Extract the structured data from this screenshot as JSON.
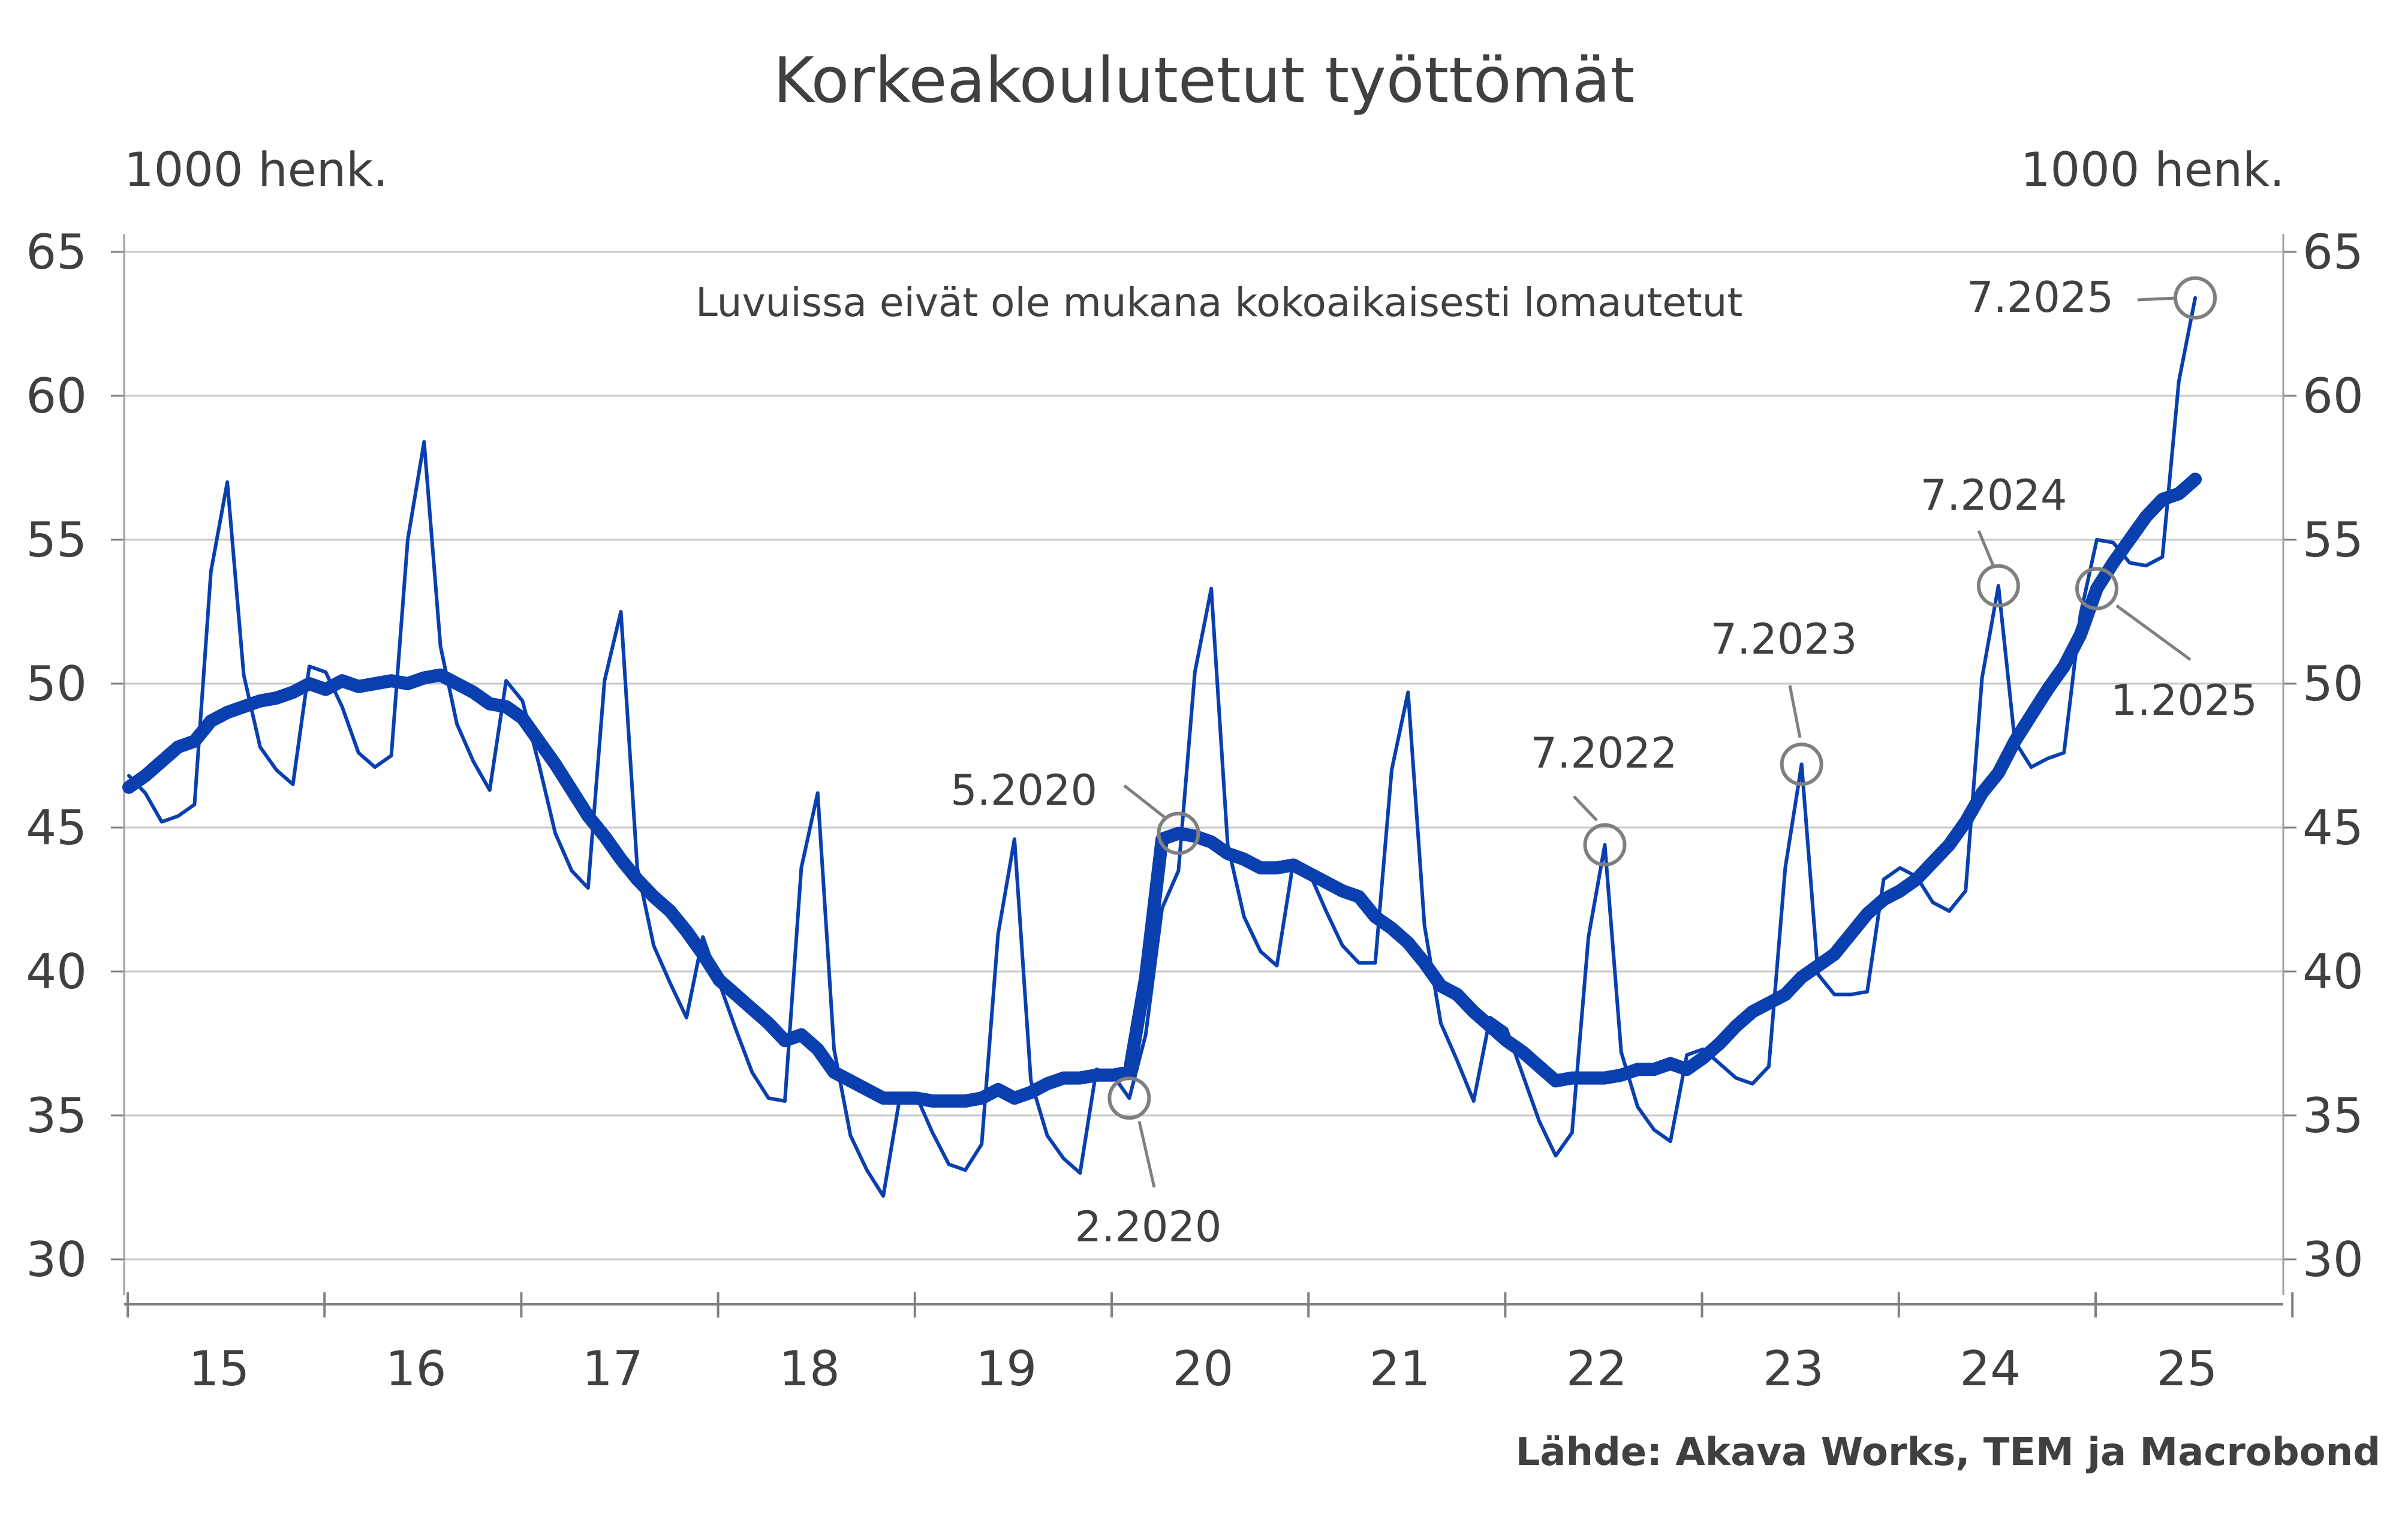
{
  "title": "Korkeakoulutetut työttömät",
  "left_unit": "1000 henk.",
  "right_unit": "1000 henk.",
  "note": "Luvuissa eivät ole mukana kokoaikaisesti lomautetut",
  "source": "Lähde: Akava Works, TEM ja Macrobond",
  "colors": {
    "series": "#0a3fb0",
    "grid": "#c8c8c8",
    "annotation": "#7f7f7f",
    "text": "#404040"
  },
  "chart_data": {
    "type": "line",
    "x_ticks": [
      "15",
      "16",
      "17",
      "18",
      "19",
      "20",
      "21",
      "22",
      "23",
      "24",
      "25"
    ],
    "y_ticks": [
      30,
      35,
      40,
      45,
      50,
      55,
      60,
      65
    ],
    "ylim": [
      30,
      65
    ],
    "xlim": [
      "2015-01",
      "2025-12"
    ],
    "grid": true,
    "series": [
      {
        "style": "thin",
        "x_start": "2015-01",
        "values": [
          46.8,
          46.2,
          45.2,
          45.4,
          45.8,
          53.9,
          57.0,
          50.3,
          47.8,
          47.0,
          46.5,
          50.6,
          50.4,
          49.2,
          47.6,
          47.1,
          47.5,
          55.0,
          58.4,
          51.3,
          48.6,
          47.3,
          46.3,
          50.1,
          49.4,
          47.2,
          44.8,
          43.5,
          42.9,
          50.1,
          52.5,
          43.6,
          40.9,
          39.6,
          38.4,
          41.2,
          39.6,
          38.0,
          36.5,
          35.6,
          35.5,
          43.6,
          46.2,
          37.3,
          34.3,
          33.1,
          32.2,
          35.6,
          35.7,
          34.4,
          33.3,
          33.1,
          34.0,
          41.3,
          44.6,
          36.2,
          34.3,
          33.5,
          33.0,
          36.6,
          36.4,
          35.6,
          37.8,
          42.2,
          43.5,
          50.4,
          53.3,
          44.4,
          41.9,
          40.7,
          40.2,
          43.8,
          43.4,
          42.1,
          40.9,
          40.3,
          40.3,
          47.0,
          49.7,
          41.6,
          38.2,
          36.9,
          35.5,
          38.4,
          38.0,
          36.4,
          34.8,
          33.6,
          34.4,
          41.2,
          44.4,
          37.2,
          35.3,
          34.5,
          34.1,
          37.1,
          37.3,
          36.8,
          36.3,
          36.1,
          36.7,
          43.6,
          47.2,
          39.9,
          39.2,
          39.2,
          39.3,
          43.2,
          43.6,
          43.3,
          42.4,
          42.1,
          42.8,
          50.2,
          53.4,
          48.0,
          47.1,
          47.4,
          47.6,
          52.4,
          55.0,
          54.9,
          54.2,
          54.1,
          54.4,
          60.5,
          63.4
        ]
      },
      {
        "style": "thick",
        "x_start": "2015-01",
        "values": [
          46.4,
          46.8,
          47.3,
          47.8,
          48.0,
          48.7,
          49.0,
          49.2,
          49.4,
          49.5,
          49.7,
          50.0,
          49.8,
          50.1,
          49.9,
          50.0,
          50.1,
          50.0,
          50.2,
          50.3,
          50.0,
          49.7,
          49.3,
          49.2,
          48.8,
          48.0,
          47.2,
          46.3,
          45.4,
          44.7,
          43.9,
          43.2,
          42.6,
          42.1,
          41.4,
          40.6,
          39.7,
          39.2,
          38.7,
          38.2,
          37.6,
          37.8,
          37.3,
          36.5,
          36.2,
          35.9,
          35.6,
          35.6,
          35.6,
          35.5,
          35.5,
          35.5,
          35.6,
          35.9,
          35.6,
          35.8,
          36.1,
          36.3,
          36.3,
          36.4,
          36.4,
          36.5,
          39.8,
          44.6,
          44.8,
          44.7,
          44.5,
          44.1,
          43.9,
          43.6,
          43.6,
          43.7,
          43.4,
          43.1,
          42.8,
          42.6,
          41.9,
          41.5,
          41.0,
          40.3,
          39.5,
          39.2,
          38.6,
          38.1,
          37.6,
          37.2,
          36.7,
          36.2,
          36.3,
          36.3,
          36.3,
          36.4,
          36.6,
          36.6,
          36.8,
          36.6,
          37.0,
          37.5,
          38.1,
          38.6,
          38.9,
          39.2,
          39.8,
          40.2,
          40.6,
          41.3,
          42.0,
          42.5,
          42.8,
          43.2,
          43.8,
          44.4,
          45.2,
          46.2,
          46.9,
          48.0,
          48.9,
          49.8,
          50.6,
          51.7,
          53.3,
          54.2,
          55.0,
          55.8,
          56.4,
          56.6,
          57.1
        ]
      }
    ],
    "annotations": [
      {
        "label": "5.2020",
        "x": "2020-05",
        "y": 44.8
      },
      {
        "label": "2.2020",
        "x": "2020-02",
        "y": 35.6
      },
      {
        "label": "7.2022",
        "x": "2022-07",
        "y": 44.4
      },
      {
        "label": "7.2023",
        "x": "2023-07",
        "y": 47.2
      },
      {
        "label": "7.2024",
        "x": "2024-07",
        "y": 53.4
      },
      {
        "label": "1.2025",
        "x": "2025-01",
        "y": 53.3
      },
      {
        "label": "7.2025",
        "x": "2025-07",
        "y": 63.4
      }
    ]
  }
}
